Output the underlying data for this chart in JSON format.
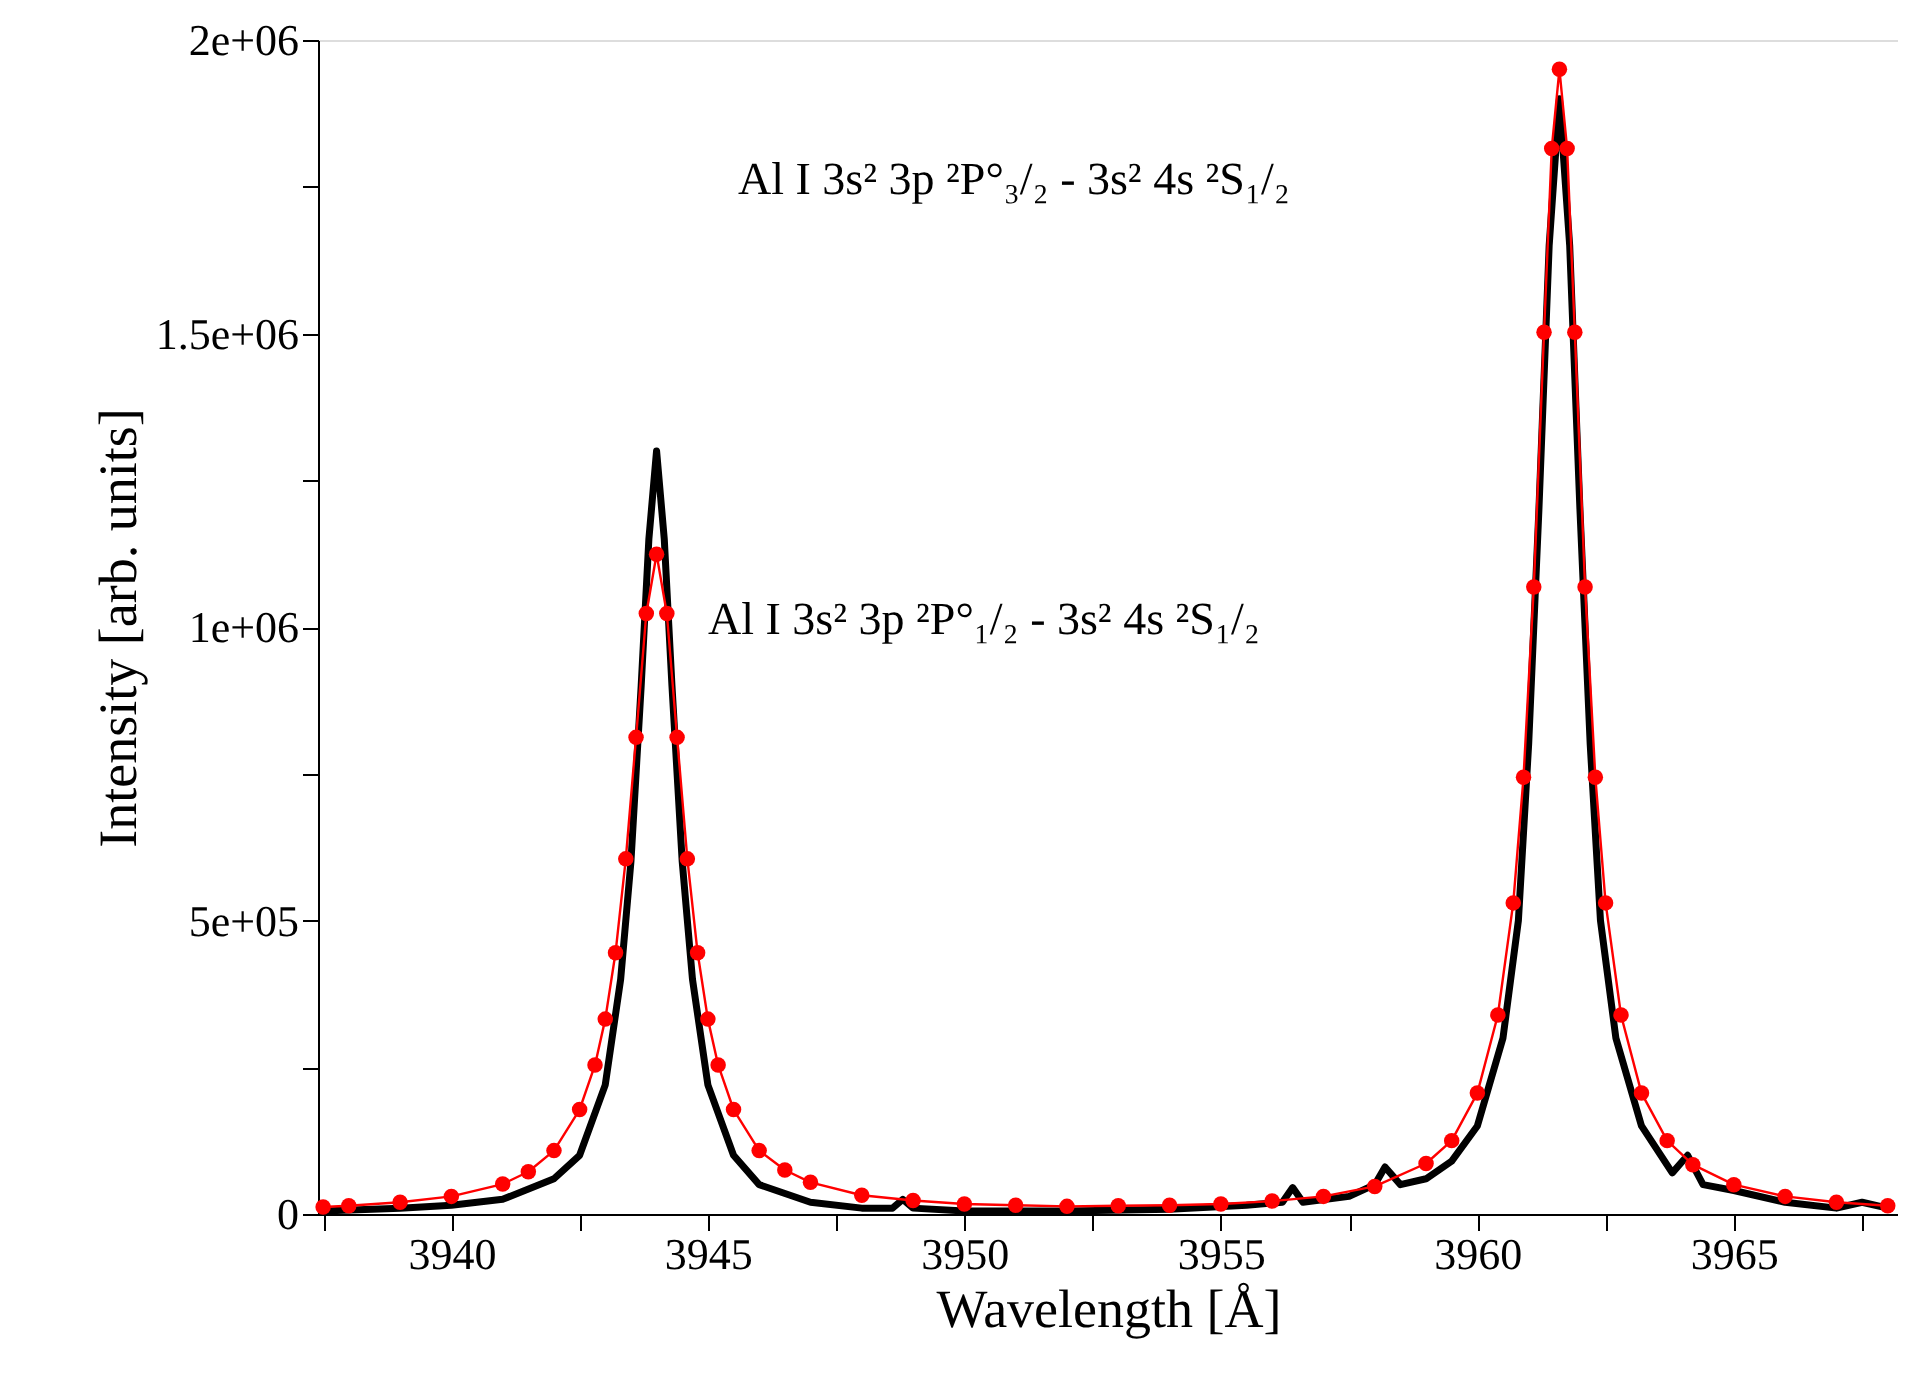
{
  "chart_data": {
    "type": "line",
    "xlabel": "Wavelength [Å]",
    "ylabel": "Intensity [arb. units]",
    "xlim": [
      3937.4,
      3968.2
    ],
    "ylim": [
      0,
      2000000
    ],
    "xticks": [
      {
        "value": 3937.5,
        "label": null
      },
      3940,
      {
        "value": 3942.5,
        "label": null
      },
      3945,
      {
        "value": 3947.5,
        "label": null
      },
      3950,
      {
        "value": 3952.5,
        "label": null
      },
      3955,
      {
        "value": 3957.5,
        "label": null
      },
      3960,
      {
        "value": 3962.5,
        "label": null
      },
      3965,
      {
        "value": 3967.5,
        "label": null
      }
    ],
    "yticks": [
      0,
      {
        "value": 250000,
        "label": null
      },
      {
        "value": 500000,
        "label": "5e+05"
      },
      {
        "value": 750000,
        "label": null
      },
      {
        "value": 1000000,
        "label": "1e+06"
      },
      {
        "value": 1250000,
        "label": null
      },
      {
        "value": 1500000,
        "label": "1.5e+06"
      },
      {
        "value": 1750000,
        "label": null
      },
      {
        "value": 2000000,
        "label": "2e+06"
      }
    ],
    "grid": false,
    "annotations": [
      "Al I 3s² 3p ²P°₃/₂ - 3s² 4s ²S₁/₂",
      "Al I 3s² 3p ²P°₁/₂ - 3s² 4s ²S₁/₂"
    ],
    "series": [
      {
        "color": "#000000",
        "marker": "none",
        "line_style": "solid",
        "x": [
          3937.5,
          3939,
          3940,
          3941,
          3942,
          3942.5,
          3943,
          3943.3,
          3943.5,
          3943.7,
          3943.85,
          3944.0,
          3944.15,
          3944.3,
          3944.5,
          3944.7,
          3945.0,
          3945.5,
          3946,
          3947,
          3948,
          3948.6,
          3948.8,
          3949.0,
          3950,
          3952,
          3954,
          3955.5,
          3956.2,
          3956.4,
          3956.6,
          3957.5,
          3958.0,
          3958.2,
          3958.5,
          3959,
          3959.5,
          3960,
          3960.5,
          3960.8,
          3961.0,
          3961.2,
          3961.4,
          3961.6,
          3961.8,
          3962.0,
          3962.2,
          3962.4,
          3962.7,
          3963.2,
          3963.8,
          3964.1,
          3964.4,
          3965,
          3966,
          3967,
          3967.5,
          3968
        ],
        "values": [
          5000,
          10000,
          15000,
          25000,
          60000,
          100000,
          220000,
          400000,
          600000,
          900000,
          1150000,
          1300000,
          1150000,
          900000,
          600000,
          400000,
          220000,
          100000,
          50000,
          20000,
          10000,
          10000,
          25000,
          10000,
          5000,
          5000,
          8000,
          15000,
          20000,
          45000,
          20000,
          30000,
          50000,
          80000,
          50000,
          60000,
          90000,
          150000,
          300000,
          500000,
          800000,
          1200000,
          1650000,
          1900000,
          1650000,
          1200000,
          800000,
          500000,
          300000,
          150000,
          70000,
          100000,
          50000,
          40000,
          20000,
          10000,
          20000,
          10000
        ]
      },
      {
        "color": "#ff0000",
        "marker": "circle",
        "line_style": "solid",
        "x": [
          3937.5,
          3938,
          3939,
          3940,
          3941,
          3941.5,
          3942,
          3942.5,
          3942.8,
          3943.0,
          3943.2,
          3943.4,
          3943.6,
          3943.8,
          3944.0,
          3944.2,
          3944.4,
          3944.6,
          3944.8,
          3945.0,
          3945.2,
          3945.5,
          3946,
          3946.5,
          3947,
          3948,
          3949,
          3950,
          3951,
          3952,
          3953,
          3954,
          3955,
          3956,
          3957,
          3958,
          3959,
          3959.5,
          3960,
          3960.4,
          3960.7,
          3960.9,
          3961.1,
          3961.3,
          3961.45,
          3961.6,
          3961.75,
          3961.9,
          3962.1,
          3962.3,
          3962.5,
          3962.8,
          3963.2,
          3963.7,
          3964.2,
          3965,
          3966,
          3967,
          3968
        ],
        "values": [
          12000,
          14000,
          20000,
          30000,
          51000,
          72000,
          108000,
          178000,
          254000,
          332000,
          445000,
          605000,
          812000,
          1023000,
          1124000,
          1023000,
          812000,
          605000,
          445000,
          332000,
          254000,
          178000,
          108000,
          75000,
          54000,
          32000,
          23000,
          17000,
          15000,
          13000,
          14000,
          15000,
          17000,
          22000,
          30000,
          47000,
          86000,
          125000,
          206000,
          339000,
          530000,
          744000,
          1068000,
          1502000,
          1815000,
          1950000,
          1815000,
          1502000,
          1068000,
          744000,
          530000,
          339000,
          206000,
          125000,
          84000,
          50000,
          30000,
          20000,
          14000
        ]
      }
    ]
  }
}
